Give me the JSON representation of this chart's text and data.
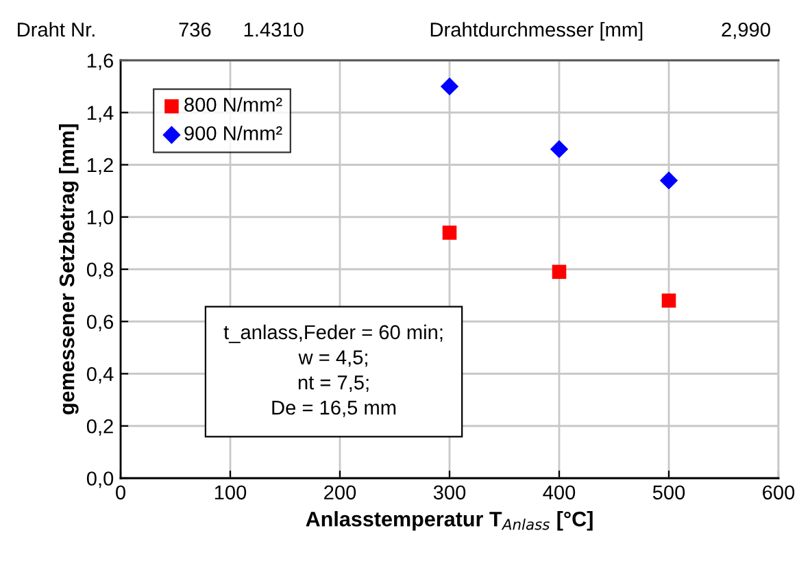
{
  "chart_data": {
    "type": "scatter",
    "xlabel": "Anlasstemperatur T$_{Anlass}$ [°C]",
    "ylabel": "gemessener Setzbetrag [mm]",
    "x": [
      300,
      400,
      500
    ],
    "series": [
      {
        "name": "800 N/mm²",
        "color": "#ff0000",
        "marker": "square",
        "values": [
          0.94,
          0.79,
          0.68
        ]
      },
      {
        "name": "900 N/mm²",
        "color": "#0000ff",
        "marker": "diamond",
        "values": [
          1.5,
          1.26,
          1.14
        ]
      }
    ],
    "xlim": [
      0,
      600
    ],
    "xticks": [
      0,
      100,
      200,
      300,
      400,
      500,
      600
    ],
    "ylim": [
      0,
      1.6
    ],
    "yticks": [
      {
        "value": 0,
        "label": "0,0"
      },
      {
        "value": 0.2,
        "label": "0,2"
      },
      {
        "value": 0.4,
        "label": "0,4"
      },
      {
        "value": 0.6,
        "label": "0,6"
      },
      {
        "value": 0.8,
        "label": "0,8"
      },
      {
        "value": 1.0,
        "label": "1,0"
      },
      {
        "value": 1.2,
        "label": "1,2"
      },
      {
        "value": 1.4,
        "label": "1,4"
      },
      {
        "value": 1.6,
        "label": "1,6"
      }
    ],
    "grid": true,
    "legend": "top left",
    "annotations": [
      "Draht Nr.",
      "736",
      "1.4310",
      "Drahtdurchmesser [mm]",
      "2,990",
      "t_anlass,Feder = 60 min;\nw = 4,5;\nnt = 7,5;\nDe = 16,5 mm"
    ]
  }
}
